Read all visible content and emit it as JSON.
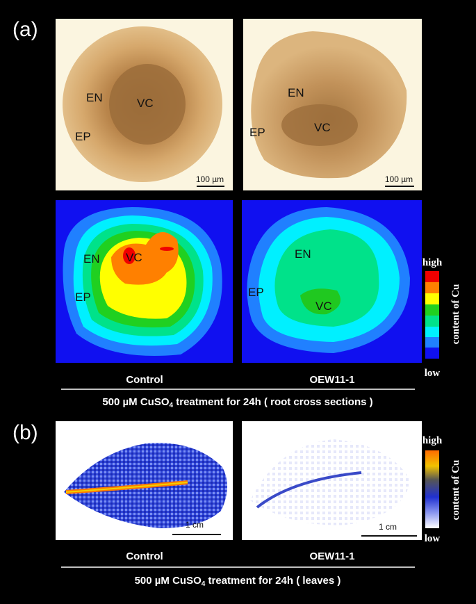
{
  "panel_a": {
    "label": "(a)",
    "micrographs": [
      {
        "labels": [
          "EN",
          "VC",
          "EP"
        ],
        "scale_bar": "100 µm"
      },
      {
        "labels": [
          "EN",
          "VC",
          "EP"
        ],
        "scale_bar": "100 µm"
      }
    ],
    "cu_maps": [
      {
        "labels": [
          "EN",
          "VC",
          "EP"
        ]
      },
      {
        "labels": [
          "EN",
          "VC",
          "EP"
        ]
      }
    ],
    "legend": {
      "high": "high",
      "low": "low",
      "title": "content of Cu"
    },
    "captions": [
      "Control",
      "OEW11-1"
    ],
    "treatment": {
      "prefix": "500 µM CuSO",
      "subscript": "4",
      "suffix": " treatment for 24h ( root cross sections )"
    }
  },
  "panel_b": {
    "label": "(b)",
    "scale_bars": [
      "1 cm",
      "1 cm"
    ],
    "legend": {
      "high": "high",
      "low": "low",
      "title": "content of Cu"
    },
    "captions": [
      "Control",
      "OEW11-1"
    ],
    "treatment": {
      "prefix": "500 µM CuSO",
      "subscript": "4",
      "suffix": " treatment for 24h ( leaves )"
    }
  }
}
